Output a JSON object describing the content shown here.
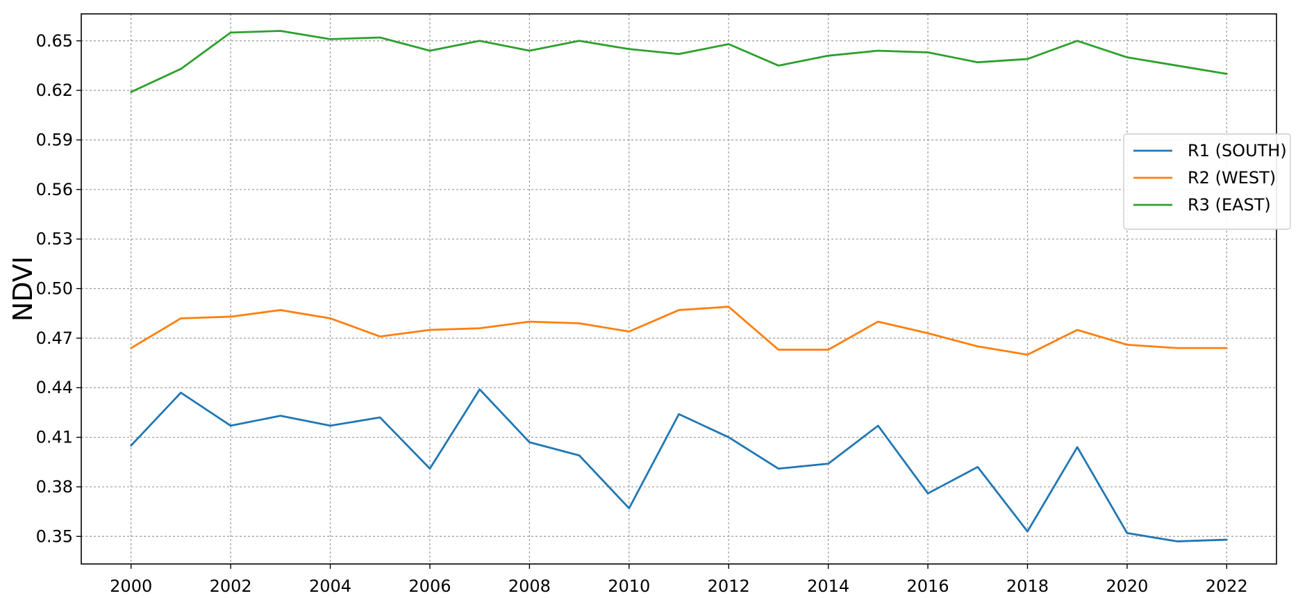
{
  "chart_data": {
    "type": "line",
    "title": "",
    "xlabel": "",
    "ylabel": "NDVI",
    "x": [
      2000,
      2001,
      2002,
      2003,
      2004,
      2005,
      2006,
      2007,
      2008,
      2009,
      2010,
      2011,
      2012,
      2013,
      2014,
      2015,
      2016,
      2017,
      2018,
      2019,
      2020,
      2021,
      2022
    ],
    "xlim": [
      1999,
      2023
    ],
    "ylim": [
      0.3333,
      0.6663
    ],
    "x_ticks": [
      2000,
      2002,
      2004,
      2006,
      2008,
      2010,
      2012,
      2014,
      2016,
      2018,
      2020,
      2022
    ],
    "x_tick_labels": [
      "2000",
      "2002",
      "2004",
      "2006",
      "2008",
      "2010",
      "2012",
      "2014",
      "2016",
      "2018",
      "2020",
      "2022"
    ],
    "y_ticks": [
      0.35,
      0.38,
      0.41,
      0.44,
      0.47,
      0.5,
      0.53,
      0.56,
      0.59,
      0.62,
      0.65
    ],
    "y_tick_labels": [
      "0.35",
      "0.38",
      "0.41",
      "0.44",
      "0.47",
      "0.50",
      "0.53",
      "0.56",
      "0.59",
      "0.62",
      "0.65"
    ],
    "grid": true,
    "legend_position": "right",
    "series": [
      {
        "name": "R1 (SOUTH)",
        "color": "#1f77b4",
        "values": [
          0.405,
          0.437,
          0.417,
          0.423,
          0.417,
          0.422,
          0.391,
          0.439,
          0.407,
          0.399,
          0.367,
          0.424,
          0.41,
          0.391,
          0.394,
          0.417,
          0.376,
          0.392,
          0.353,
          0.404,
          0.352,
          0.347,
          0.348
        ]
      },
      {
        "name": "R2 (WEST)",
        "color": "#ff7f0e",
        "values": [
          0.464,
          0.482,
          0.483,
          0.487,
          0.482,
          0.471,
          0.475,
          0.476,
          0.48,
          0.479,
          0.474,
          0.487,
          0.489,
          0.463,
          0.463,
          0.48,
          0.473,
          0.465,
          0.46,
          0.475,
          0.466,
          0.464,
          0.464
        ]
      },
      {
        "name": "R3 (EAST)",
        "color": "#2ca02c",
        "values": [
          0.619,
          0.633,
          0.655,
          0.656,
          0.651,
          0.652,
          0.644,
          0.65,
          0.644,
          0.65,
          0.645,
          0.642,
          0.648,
          0.635,
          0.641,
          0.644,
          0.643,
          0.637,
          0.639,
          0.65,
          0.64,
          0.635,
          0.63
        ]
      }
    ]
  }
}
